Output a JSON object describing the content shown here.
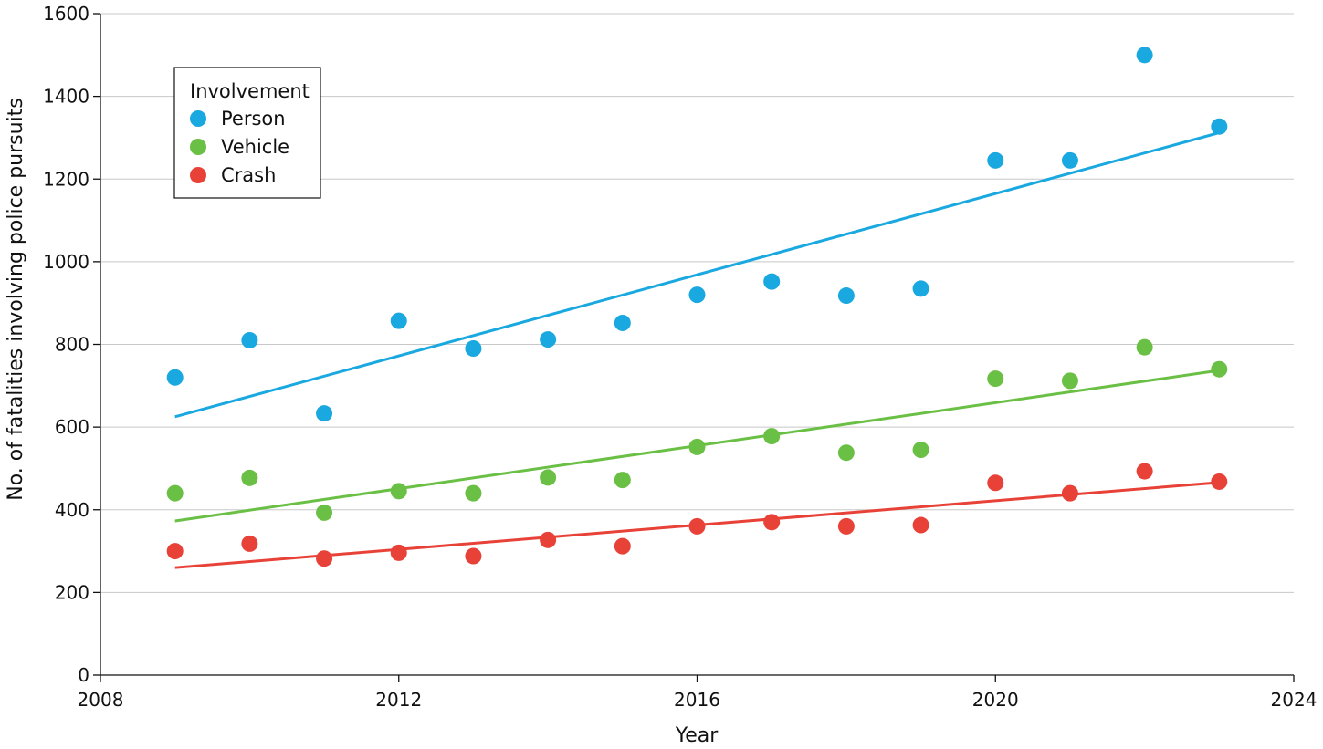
{
  "chart_data": {
    "type": "scatter",
    "xlabel": "Year",
    "ylabel": "No. of fatalities involving police pursuits",
    "xlim": [
      2008,
      2024
    ],
    "ylim": [
      0,
      1600
    ],
    "xticks": [
      2008,
      2012,
      2016,
      2020,
      2024
    ],
    "yticks": [
      0,
      200,
      400,
      600,
      800,
      1000,
      1200,
      1400,
      1600
    ],
    "grid": {
      "horizontal": true,
      "vertical": false
    },
    "legend": {
      "title": "Involvement",
      "position": "top-left"
    },
    "x": [
      2009,
      2010,
      2011,
      2012,
      2013,
      2014,
      2015,
      2016,
      2017,
      2018,
      2019,
      2020,
      2021,
      2022,
      2023
    ],
    "series": [
      {
        "name": "Person",
        "color": "#1aa8e0",
        "values": [
          720,
          810,
          633,
          857,
          790,
          812,
          852,
          920,
          952,
          918,
          935,
          1245,
          1245,
          1500,
          1327
        ],
        "trend": [
          [
            2009,
            625
          ],
          [
            2023,
            1312
          ]
        ]
      },
      {
        "name": "Vehicle",
        "color": "#6abf45",
        "values": [
          440,
          477,
          393,
          445,
          440,
          478,
          472,
          552,
          578,
          538,
          545,
          717,
          712,
          793,
          740
        ],
        "trend": [
          [
            2009,
            373
          ],
          [
            2023,
            737
          ]
        ]
      },
      {
        "name": "Crash",
        "color": "#e84238",
        "values": [
          300,
          318,
          282,
          296,
          288,
          327,
          312,
          360,
          370,
          360,
          363,
          465,
          440,
          493,
          468
        ],
        "trend": [
          [
            2009,
            260
          ],
          [
            2023,
            466
          ]
        ]
      }
    ]
  }
}
